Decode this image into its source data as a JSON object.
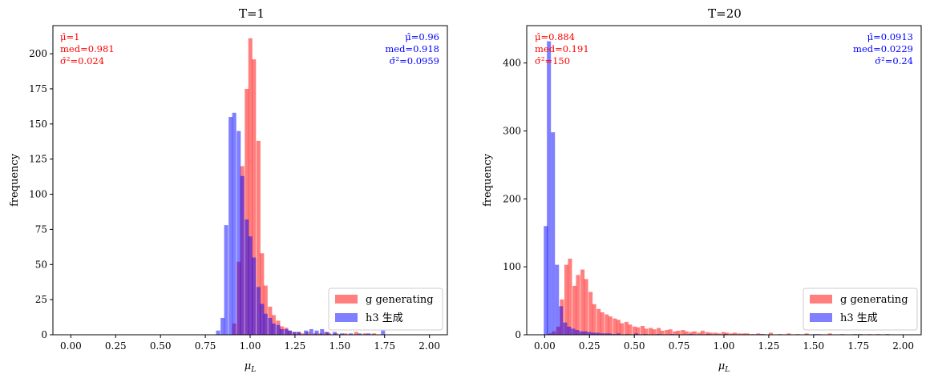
{
  "chart_data": [
    {
      "type": "histogram",
      "title": "T=1",
      "xlabel": "μL",
      "ylabel": "frequency",
      "xlim": [
        -0.1,
        2.1
      ],
      "ylim": [
        0,
        220
      ],
      "xticks": [
        "0.00",
        "0.25",
        "0.50",
        "0.75",
        "1.00",
        "1.25",
        "1.50",
        "1.75",
        "2.00"
      ],
      "yticks": [
        "0",
        "25",
        "50",
        "75",
        "100",
        "125",
        "150",
        "175",
        "200"
      ],
      "xtick_values": [
        0,
        0.25,
        0.5,
        0.75,
        1.0,
        1.25,
        1.5,
        1.75,
        2.0
      ],
      "ytick_values": [
        0,
        25,
        50,
        75,
        100,
        125,
        150,
        175,
        200
      ],
      "bin_width": 0.0225,
      "legend_position": "lower-right",
      "series": [
        {
          "name": "g generating",
          "color": "#ff0000",
          "alpha": 0.5,
          "bins": [
            [
              0.9,
              8
            ],
            [
              0.925,
              52
            ],
            [
              0.945,
              120
            ],
            [
              0.97,
              175
            ],
            [
              0.99,
              211
            ],
            [
              1.01,
              196
            ],
            [
              1.035,
              138
            ],
            [
              1.055,
              58
            ],
            [
              1.075,
              35
            ],
            [
              1.1,
              20
            ],
            [
              1.12,
              14
            ],
            [
              1.145,
              10
            ],
            [
              1.165,
              6
            ],
            [
              1.19,
              5
            ],
            [
              1.21,
              3
            ],
            [
              1.235,
              2
            ],
            [
              1.26,
              2
            ],
            [
              1.28,
              1
            ],
            [
              1.31,
              2
            ],
            [
              1.35,
              1
            ],
            [
              1.38,
              1
            ],
            [
              1.41,
              2
            ],
            [
              1.43,
              1
            ],
            [
              1.47,
              1
            ],
            [
              1.52,
              1
            ],
            [
              1.58,
              2
            ],
            [
              1.63,
              1
            ],
            [
              1.68,
              1
            ]
          ]
        },
        {
          "name": "h3 生成",
          "color": "#0000ff",
          "alpha": 0.5,
          "bins": [
            [
              0.81,
              3
            ],
            [
              0.835,
              12
            ],
            [
              0.855,
              78
            ],
            [
              0.88,
              155
            ],
            [
              0.9,
              158
            ],
            [
              0.925,
              145
            ],
            [
              0.945,
              113
            ],
            [
              0.97,
              82
            ],
            [
              0.99,
              70
            ],
            [
              1.01,
              55
            ],
            [
              1.035,
              34
            ],
            [
              1.055,
              22
            ],
            [
              1.075,
              15
            ],
            [
              1.1,
              12
            ],
            [
              1.12,
              8
            ],
            [
              1.145,
              7
            ],
            [
              1.165,
              4
            ],
            [
              1.19,
              4
            ],
            [
              1.21,
              3
            ],
            [
              1.235,
              2
            ],
            [
              1.26,
              2
            ],
            [
              1.3,
              3
            ],
            [
              1.33,
              4
            ],
            [
              1.36,
              3
            ],
            [
              1.39,
              4
            ],
            [
              1.42,
              2
            ],
            [
              1.46,
              2
            ],
            [
              1.5,
              1
            ],
            [
              1.55,
              1
            ],
            [
              1.6,
              1
            ],
            [
              1.65,
              1
            ],
            [
              1.73,
              3
            ]
          ]
        }
      ],
      "annotations": {
        "left": {
          "color": "#ff0000",
          "mu": "μ̂=1",
          "med": "med=0.981",
          "var": "σ̂²=0.024"
        },
        "right": {
          "color": "#0000ff",
          "mu": "μ̂=0.96",
          "med": "med=0.918",
          "var": "σ̂²=0.0959"
        }
      }
    },
    {
      "type": "histogram",
      "title": "T=20",
      "xlabel": "μL",
      "ylabel": "frequency",
      "xlim": [
        -0.1,
        2.1
      ],
      "ylim": [
        0,
        455
      ],
      "xticks": [
        "0.00",
        "0.25",
        "0.50",
        "0.75",
        "1.00",
        "1.25",
        "1.50",
        "1.75",
        "2.00"
      ],
      "yticks": [
        "0",
        "100",
        "200",
        "300",
        "400"
      ],
      "xtick_values": [
        0,
        0.25,
        0.5,
        0.75,
        1.0,
        1.25,
        1.5,
        1.75,
        2.0
      ],
      "ytick_values": [
        0,
        100,
        200,
        300,
        400
      ],
      "bin_width": 0.0225,
      "legend_position": "lower-right",
      "series": [
        {
          "name": "g generating",
          "color": "#ff0000",
          "alpha": 0.5,
          "bins": [
            [
              0.02,
              2
            ],
            [
              0.04,
              5
            ],
            [
              0.065,
              12
            ],
            [
              0.085,
              52
            ],
            [
              0.11,
              103
            ],
            [
              0.13,
              112
            ],
            [
              0.155,
              72
            ],
            [
              0.175,
              88
            ],
            [
              0.2,
              96
            ],
            [
              0.22,
              82
            ],
            [
              0.245,
              63
            ],
            [
              0.265,
              45
            ],
            [
              0.29,
              38
            ],
            [
              0.31,
              33
            ],
            [
              0.335,
              30
            ],
            [
              0.355,
              27
            ],
            [
              0.38,
              24
            ],
            [
              0.4,
              22
            ],
            [
              0.42,
              17
            ],
            [
              0.445,
              19
            ],
            [
              0.465,
              15
            ],
            [
              0.49,
              12
            ],
            [
              0.51,
              11
            ],
            [
              0.535,
              13
            ],
            [
              0.555,
              9
            ],
            [
              0.58,
              10
            ],
            [
              0.6,
              8
            ],
            [
              0.625,
              10
            ],
            [
              0.645,
              6
            ],
            [
              0.67,
              7
            ],
            [
              0.69,
              8
            ],
            [
              0.715,
              5
            ],
            [
              0.735,
              6
            ],
            [
              0.76,
              7
            ],
            [
              0.78,
              5
            ],
            [
              0.805,
              4
            ],
            [
              0.825,
              5
            ],
            [
              0.85,
              3
            ],
            [
              0.87,
              6
            ],
            [
              0.895,
              4
            ],
            [
              0.915,
              3
            ],
            [
              0.94,
              3
            ],
            [
              0.96,
              2
            ],
            [
              0.985,
              4
            ],
            [
              1.005,
              3
            ],
            [
              1.03,
              2
            ],
            [
              1.05,
              3
            ],
            [
              1.075,
              2
            ],
            [
              1.1,
              2
            ],
            [
              1.12,
              2
            ],
            [
              1.15,
              1
            ],
            [
              1.18,
              2
            ],
            [
              1.21,
              1
            ],
            [
              1.25,
              3
            ],
            [
              1.3,
              1
            ],
            [
              1.35,
              2
            ],
            [
              1.4,
              1
            ],
            [
              1.45,
              2
            ],
            [
              1.52,
              1
            ],
            [
              1.58,
              2
            ],
            [
              1.65,
              1
            ],
            [
              1.72,
              1
            ],
            [
              1.8,
              1
            ],
            [
              1.85,
              1
            ]
          ]
        },
        {
          "name": "h3 生成",
          "color": "#0000ff",
          "alpha": 0.5,
          "bins": [
            [
              -0.005,
              160
            ],
            [
              0.0125,
              432
            ],
            [
              0.035,
              298
            ],
            [
              0.0575,
              103
            ],
            [
              0.08,
              42
            ],
            [
              0.1025,
              18
            ],
            [
              0.125,
              12
            ],
            [
              0.1475,
              9
            ],
            [
              0.17,
              7
            ],
            [
              0.1925,
              5
            ],
            [
              0.215,
              5
            ],
            [
              0.2375,
              4
            ],
            [
              0.26,
              3
            ],
            [
              0.2825,
              3
            ],
            [
              0.305,
              2
            ],
            [
              0.3275,
              2
            ],
            [
              0.35,
              2
            ],
            [
              0.3725,
              1
            ],
            [
              0.4,
              2
            ],
            [
              0.45,
              1
            ],
            [
              0.5,
              2
            ],
            [
              0.55,
              1
            ],
            [
              0.62,
              1
            ],
            [
              0.7,
              1
            ],
            [
              0.8,
              1
            ],
            [
              0.9,
              1
            ],
            [
              1.0,
              1
            ],
            [
              1.2,
              1
            ],
            [
              1.5,
              1
            ],
            [
              1.75,
              1
            ],
            [
              1.9,
              1
            ]
          ]
        }
      ],
      "annotations": {
        "left": {
          "color": "#ff0000",
          "mu": "μ̂=0.884",
          "med": "med=0.191",
          "var": "σ̂²=150"
        },
        "right": {
          "color": "#0000ff",
          "mu": "μ̂=0.0913",
          "med": "med=0.0229",
          "var": "σ̂²=0.24"
        }
      }
    }
  ]
}
